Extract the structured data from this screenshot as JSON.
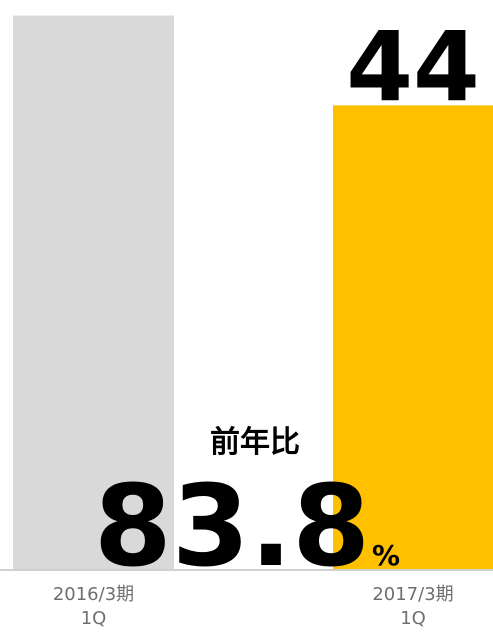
{
  "chart_data": {
    "type": "bar",
    "categories": [
      "2016/3期\n1Q",
      "2017/3期\n1Q"
    ],
    "values": [
      52.5,
      44
    ],
    "value_labels": [
      null,
      "44"
    ],
    "colors": [
      "#d9d9d9",
      "#ffc000"
    ],
    "ylim": [
      0,
      53.5
    ],
    "annotation": {
      "title": "前年比",
      "value": "83.8",
      "unit": "%"
    }
  }
}
